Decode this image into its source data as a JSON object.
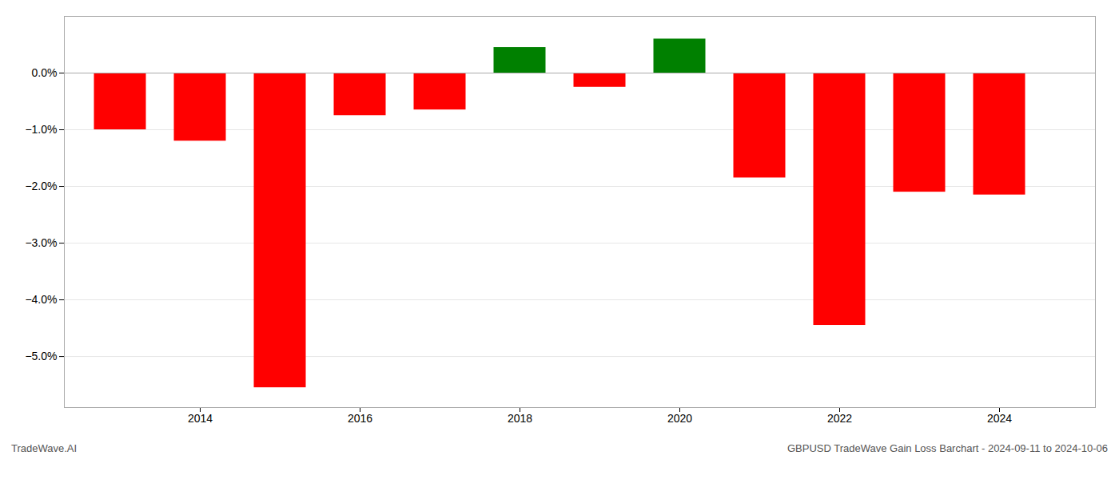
{
  "chart_data": {
    "type": "bar",
    "x": [
      2013,
      2014,
      2015,
      2016,
      2017,
      2018,
      2019,
      2020,
      2021,
      2022,
      2023,
      2024
    ],
    "values": [
      -1.0,
      -1.2,
      -5.55,
      -0.75,
      -0.65,
      0.45,
      -0.25,
      0.6,
      -1.85,
      -4.45,
      -2.1,
      -2.15
    ],
    "colors": [
      "#ff0000",
      "#ff0000",
      "#ff0000",
      "#ff0000",
      "#ff0000",
      "#008000",
      "#ff0000",
      "#008000",
      "#ff0000",
      "#ff0000",
      "#ff0000",
      "#ff0000"
    ],
    "xlim": [
      2012.3,
      2025.2
    ],
    "xticks": [
      2014,
      2016,
      2018,
      2020,
      2022,
      2024
    ],
    "ylim": [
      -5.9,
      1.0
    ],
    "yticks": [
      {
        "value": 0.0,
        "label": "0.0%"
      },
      {
        "value": -1.0,
        "label": "−1.0%"
      },
      {
        "value": -2.0,
        "label": "−2.0%"
      },
      {
        "value": -3.0,
        "label": "−3.0%"
      },
      {
        "value": -4.0,
        "label": "−4.0%"
      },
      {
        "value": -5.0,
        "label": "−5.0%"
      }
    ],
    "grid": true,
    "annotations": [
      "TradeWave.AI",
      "GBPUSD TradeWave Gain Loss Barchart - 2024-09-11 to 2024-10-06"
    ]
  }
}
